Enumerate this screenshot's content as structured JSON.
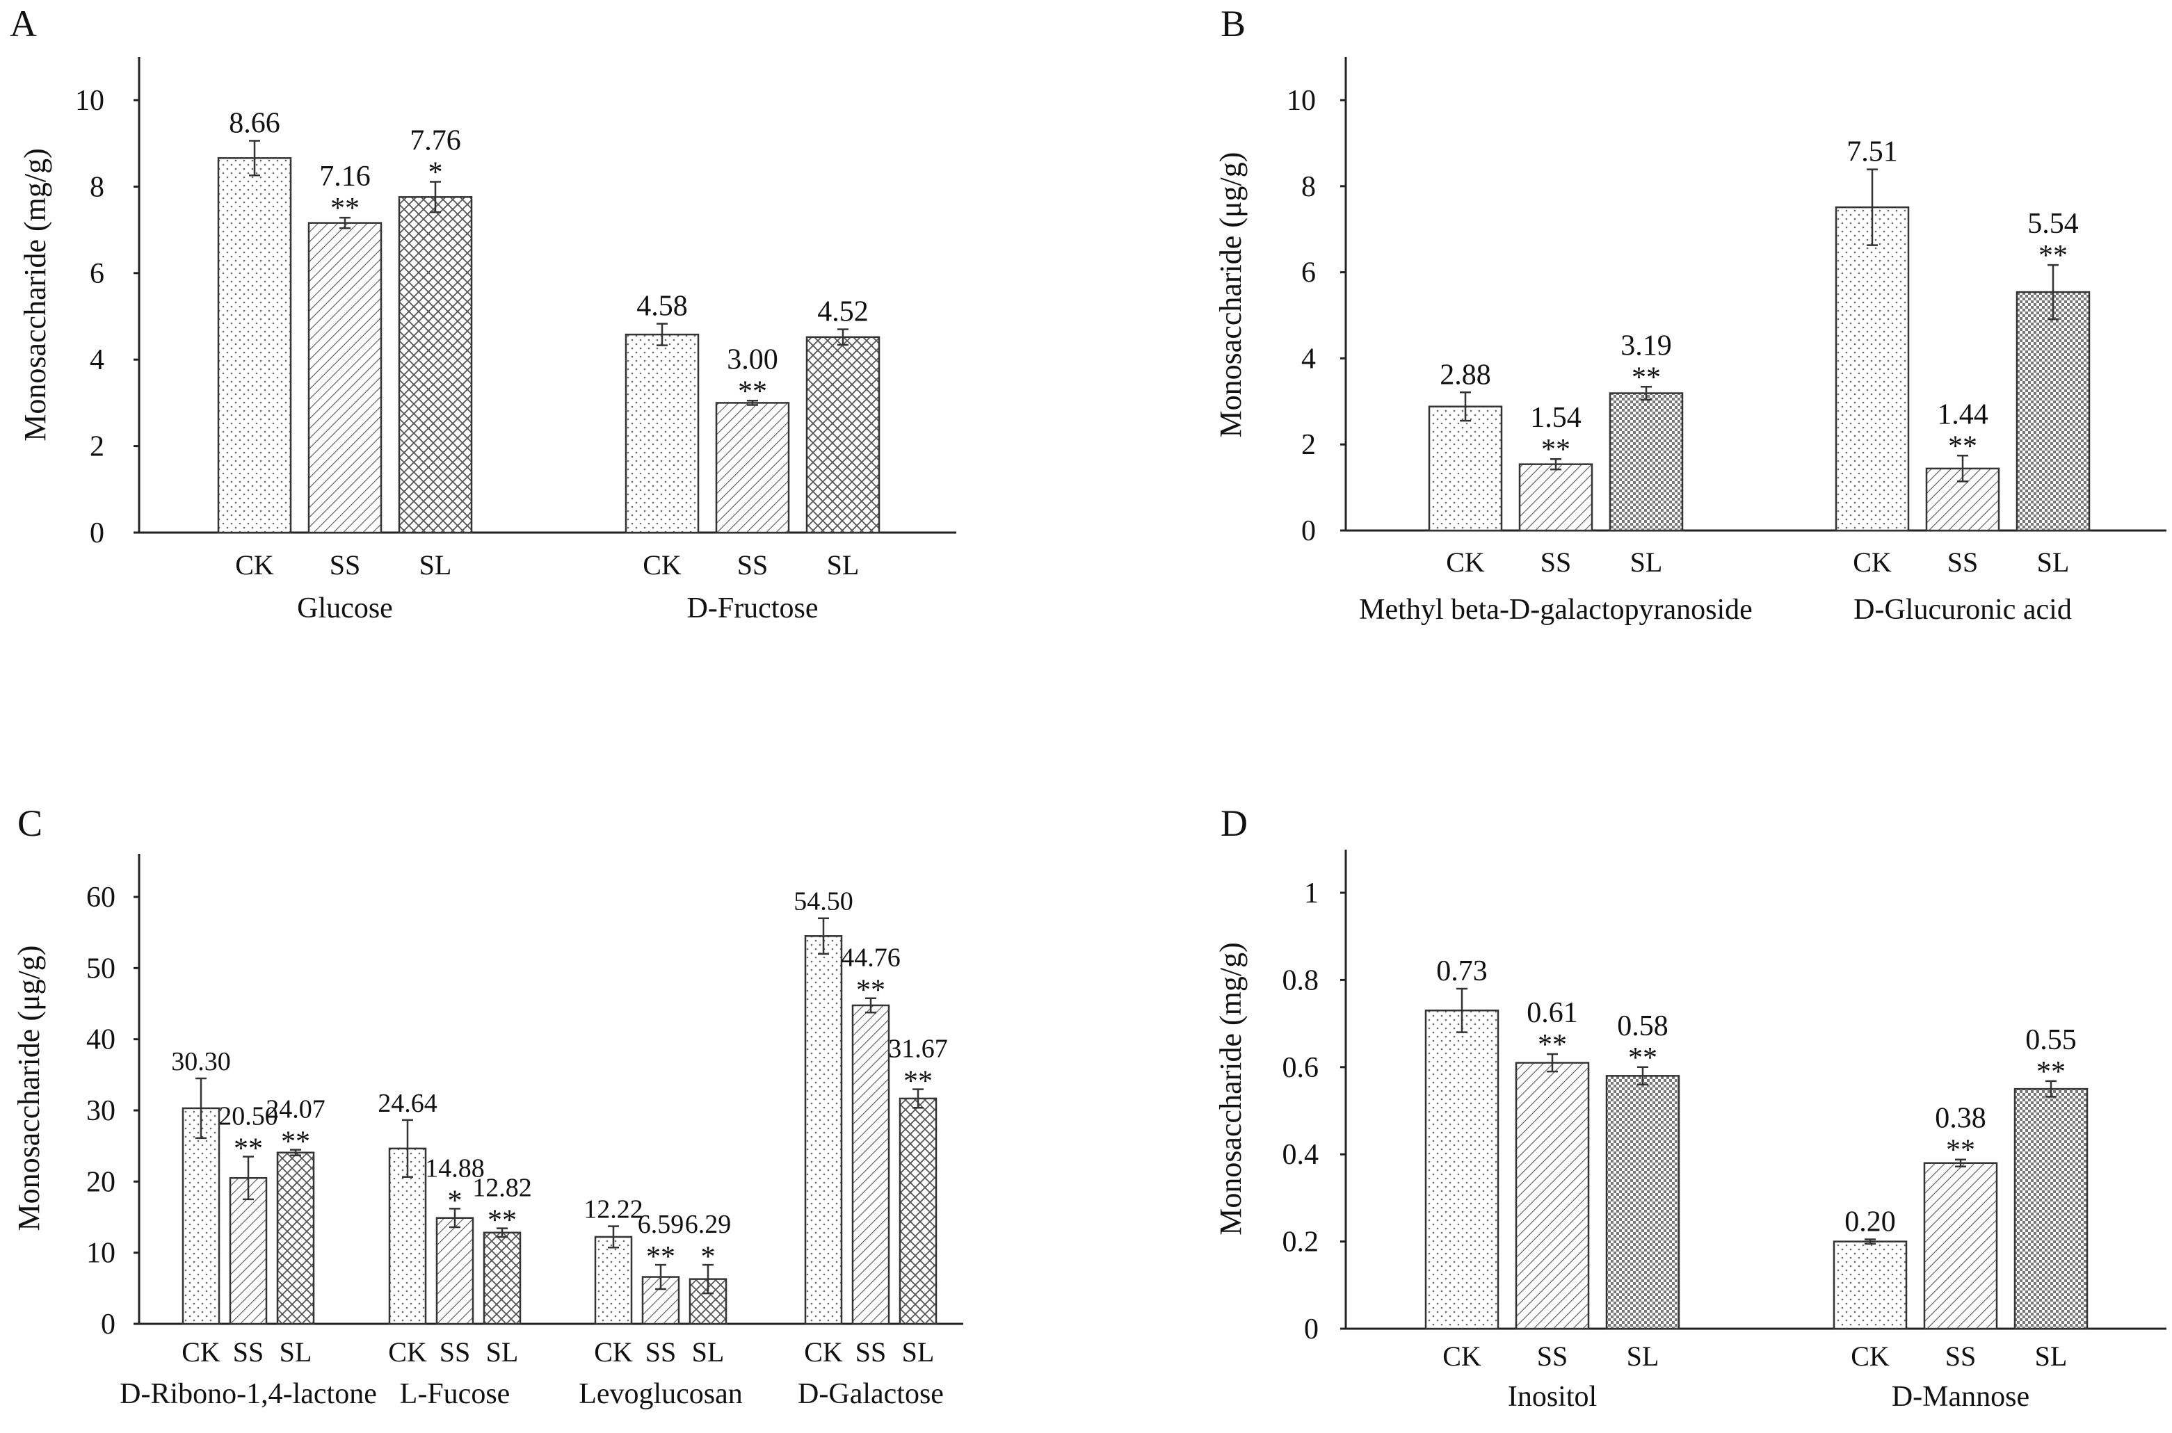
{
  "chart_data": [
    {
      "type": "bar",
      "panel": "A",
      "ylabel": "Monosaccharide (mg/g)",
      "ylim": [
        0,
        10
      ],
      "yticks": [
        0,
        2,
        4,
        6,
        8,
        10
      ],
      "series_names": [
        "CK",
        "SS",
        "SL"
      ],
      "groups": [
        {
          "name": "Glucose",
          "values": [
            8.66,
            7.16,
            7.76
          ],
          "labels": [
            "8.66",
            "7.16",
            "7.76"
          ],
          "sig": [
            "",
            "**",
            "*"
          ],
          "err": [
            0.4,
            0.12,
            0.35
          ]
        },
        {
          "name": "D-Fructose",
          "values": [
            4.58,
            3.0,
            4.52
          ],
          "labels": [
            "4.58",
            "3.00",
            "4.52"
          ],
          "sig": [
            "",
            "**",
            ""
          ],
          "err": [
            0.25,
            0.05,
            0.18
          ]
        }
      ]
    },
    {
      "type": "bar",
      "panel": "B",
      "ylabel": "Monosaccharide (μg/g)",
      "ylim": [
        0,
        10
      ],
      "yticks": [
        0,
        2,
        4,
        6,
        8,
        10
      ],
      "series_names": [
        "CK",
        "SS",
        "SL"
      ],
      "groups": [
        {
          "name": "Methyl beta-D-galactopyranoside",
          "values": [
            2.88,
            1.54,
            3.19
          ],
          "labels": [
            "2.88",
            "1.54",
            "3.19"
          ],
          "sig": [
            "",
            "**",
            "**"
          ],
          "err": [
            0.33,
            0.12,
            0.15
          ]
        },
        {
          "name": "D-Glucuronic acid",
          "values": [
            7.51,
            1.44,
            5.54
          ],
          "labels": [
            "7.51",
            "1.44",
            "5.54"
          ],
          "sig": [
            "",
            "**",
            "**"
          ],
          "err": [
            0.88,
            0.3,
            0.63
          ]
        }
      ]
    },
    {
      "type": "bar",
      "panel": "C",
      "ylabel": "Monosaccharide (μg/g)",
      "ylim": [
        0,
        60
      ],
      "yticks": [
        0,
        10,
        20,
        30,
        40,
        50,
        60
      ],
      "series_names": [
        "CK",
        "SS",
        "SL"
      ],
      "groups": [
        {
          "name": "D-Ribono-1,4-lactone",
          "values": [
            30.3,
            20.5,
            24.07
          ],
          "labels": [
            "30.30",
            "20.50",
            "24.07"
          ],
          "sig": [
            "",
            "**",
            "**"
          ],
          "err": [
            4.2,
            3.0,
            0.4
          ]
        },
        {
          "name": "L-Fucose",
          "values": [
            24.64,
            14.88,
            12.82
          ],
          "labels": [
            "24.64",
            "14.88",
            "12.82"
          ],
          "sig": [
            "",
            "*",
            "**"
          ],
          "err": [
            4.0,
            1.3,
            0.6
          ]
        },
        {
          "name": "Levoglucosan",
          "values": [
            12.22,
            6.59,
            6.29
          ],
          "labels": [
            "12.22",
            "6.59",
            "6.29"
          ],
          "sig": [
            "",
            "**",
            "*"
          ],
          "err": [
            1.5,
            1.7,
            2.0
          ]
        },
        {
          "name": "D-Galactose",
          "values": [
            54.5,
            44.76,
            31.67
          ],
          "labels": [
            "54.50",
            "44.76",
            "31.67"
          ],
          "sig": [
            "",
            "**",
            "**"
          ],
          "err": [
            2.5,
            1.0,
            1.3
          ]
        }
      ]
    },
    {
      "type": "bar",
      "panel": "D",
      "ylabel": "Monosaccharide (mg/g)",
      "ylim": [
        0,
        1
      ],
      "yticks": [
        0,
        0.2,
        0.4,
        0.6,
        0.8,
        1
      ],
      "ytick_labels": [
        "0",
        "0.2",
        "0.4",
        "0.6",
        "0.8",
        "1"
      ],
      "series_names": [
        "CK",
        "SS",
        "SL"
      ],
      "groups": [
        {
          "name": "Inositol",
          "values": [
            0.73,
            0.61,
            0.58
          ],
          "labels": [
            "0.73",
            "0.61",
            "0.58"
          ],
          "sig": [
            "",
            "**",
            "**"
          ],
          "err": [
            0.05,
            0.02,
            0.02
          ]
        },
        {
          "name": "D-Mannose",
          "values": [
            0.2,
            0.38,
            0.55
          ],
          "labels": [
            "0.20",
            "0.38",
            "0.55"
          ],
          "sig": [
            "",
            "**",
            "**"
          ],
          "err": [
            0.005,
            0.008,
            0.018
          ]
        }
      ]
    }
  ]
}
